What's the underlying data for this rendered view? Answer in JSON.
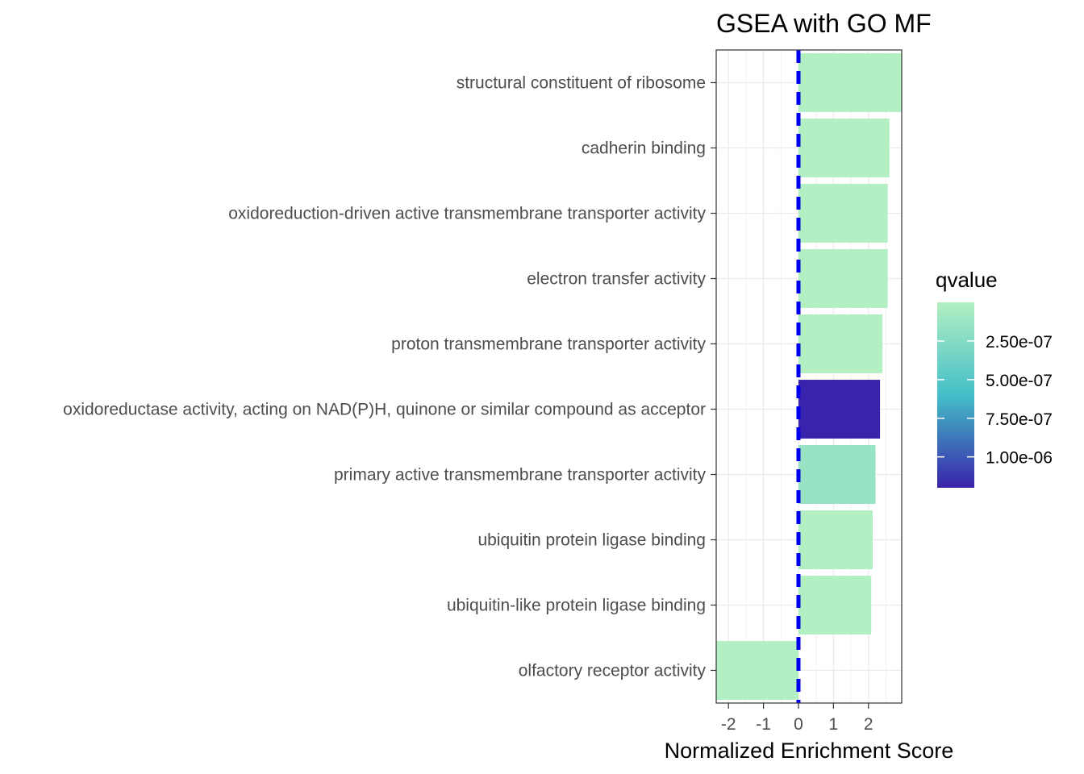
{
  "chart_data": {
    "type": "bar",
    "orientation": "horizontal",
    "title": "GSEA with GO MF",
    "xlabel": "Normalized Enrichment Score",
    "ylabel": "",
    "xlim": [
      -2.35,
      2.95
    ],
    "x_ticks": [
      -2,
      -1,
      0,
      1,
      2
    ],
    "x_tick_labels": [
      "-2",
      "-1",
      "0",
      "1",
      "2"
    ],
    "reference_line": {
      "x": 0,
      "style": "dashed",
      "color": "#0000ee"
    },
    "grid": true,
    "categories": [
      "structural constituent of ribosome",
      "cadherin binding",
      "oxidoreduction-driven active transmembrane transporter activity",
      "electron transfer activity",
      "proton transmembrane transporter activity",
      "oxidoreductase activity, acting on NAD(P)H, quinone or similar compound as acceptor",
      "primary active transmembrane transporter activity",
      "ubiquitin protein ligase binding",
      "ubiquitin-like protein ligase binding",
      "olfactory receptor activity"
    ],
    "values": [
      2.95,
      2.6,
      2.55,
      2.55,
      2.4,
      2.33,
      2.2,
      2.12,
      2.08,
      -2.35
    ],
    "qvalues": [
      1e-09,
      1e-09,
      1e-09,
      1e-09,
      1e-09,
      1.2e-06,
      1.5e-07,
      1e-09,
      1e-09,
      1e-09
    ],
    "legend": {
      "title": "qvalue",
      "position": "right",
      "ticks": [
        2.5e-07,
        5e-07,
        7.5e-07,
        1e-06
      ],
      "tick_labels": [
        "2.50e-07",
        "5.00e-07",
        "7.50e-07",
        "1.00e-06"
      ],
      "range": [
        0,
        1.2e-06
      ],
      "colors": [
        "#b2efc2",
        "#44bfc8",
        "#3923aa"
      ]
    }
  }
}
